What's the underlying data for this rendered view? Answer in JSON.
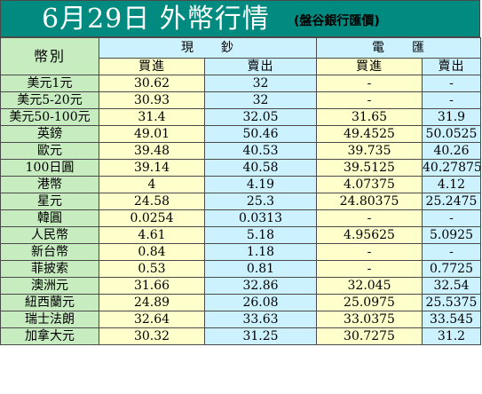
{
  "header": {
    "title": "6月29日 外幣行情",
    "source": "(盤谷銀行匯價)"
  },
  "table": {
    "label_header": "幣別",
    "group_cash": "現　　鈔",
    "group_wire": "電　　匯",
    "buy_label": "買進",
    "sell_label": "賣出",
    "rows": [
      {
        "name": "美元1元",
        "cash_buy": "30.62",
        "cash_sell": "32",
        "wire_buy": "-",
        "wire_sell": "-"
      },
      {
        "name": "美元5-20元",
        "cash_buy": "30.93",
        "cash_sell": "32",
        "wire_buy": "-",
        "wire_sell": "-"
      },
      {
        "name": "美元50-100元",
        "cash_buy": "31.4",
        "cash_sell": "32.05",
        "wire_buy": "31.65",
        "wire_sell": "31.9"
      },
      {
        "name": "英鎊",
        "cash_buy": "49.01",
        "cash_sell": "50.46",
        "wire_buy": "49.4525",
        "wire_sell": "50.0525"
      },
      {
        "name": "歐元",
        "cash_buy": "39.48",
        "cash_sell": "40.53",
        "wire_buy": "39.735",
        "wire_sell": "40.26"
      },
      {
        "name": "100日圓",
        "cash_buy": "39.14",
        "cash_sell": "40.58",
        "wire_buy": "39.5125",
        "wire_sell": "40.27875"
      },
      {
        "name": "港幣",
        "cash_buy": "4",
        "cash_sell": "4.19",
        "wire_buy": "4.07375",
        "wire_sell": "4.12"
      },
      {
        "name": "星元",
        "cash_buy": "24.58",
        "cash_sell": "25.3",
        "wire_buy": "24.80375",
        "wire_sell": "25.2475"
      },
      {
        "name": "韓圓",
        "cash_buy": "0.0254",
        "cash_sell": "0.0313",
        "wire_buy": "-",
        "wire_sell": "-"
      },
      {
        "name": "人民幣",
        "cash_buy": "4.61",
        "cash_sell": "5.18",
        "wire_buy": "4.95625",
        "wire_sell": "5.0925"
      },
      {
        "name": "新台幣",
        "cash_buy": "0.84",
        "cash_sell": "1.18",
        "wire_buy": "-",
        "wire_sell": "-"
      },
      {
        "name": "菲披索",
        "cash_buy": "0.53",
        "cash_sell": "0.81",
        "wire_buy": "-",
        "wire_sell": "0.7725"
      },
      {
        "name": "澳洲元",
        "cash_buy": "31.66",
        "cash_sell": "32.86",
        "wire_buy": "32.045",
        "wire_sell": "32.54"
      },
      {
        "name": "紐西蘭元",
        "cash_buy": "24.89",
        "cash_sell": "26.08",
        "wire_buy": "25.0975",
        "wire_sell": "25.5375"
      },
      {
        "name": "瑞士法朗",
        "cash_buy": "32.64",
        "cash_sell": "33.63",
        "wire_buy": "33.0375",
        "wire_sell": "33.545"
      },
      {
        "name": "加拿大元",
        "cash_buy": "30.32",
        "cash_sell": "31.25",
        "wire_buy": "30.7275",
        "wire_sell": "31.2"
      }
    ]
  }
}
